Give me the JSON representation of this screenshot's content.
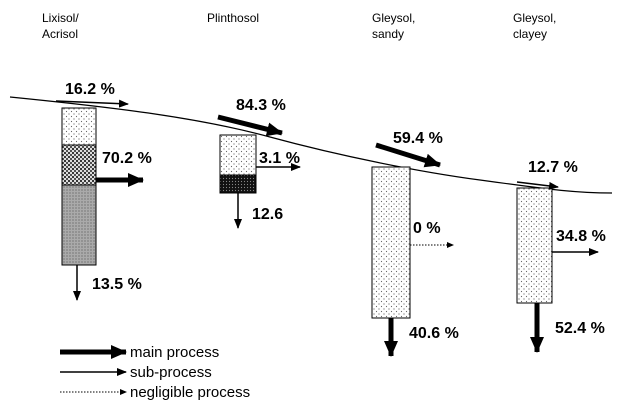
{
  "columns": [
    {
      "name": [
        "Lixisol/",
        "Acrisol"
      ],
      "inflow": "16.2 %",
      "lateral": "70.2 %",
      "drainage": "13.5 %"
    },
    {
      "name": [
        "Plinthosol"
      ],
      "inflow": "84.3 %",
      "lateral": "3.1 %",
      "drainage": "12.6"
    },
    {
      "name": [
        "Gleysol,",
        "sandy"
      ],
      "inflow": "59.4 %",
      "lateral": "0 %",
      "drainage": "40.6 %"
    },
    {
      "name": [
        "Gleysol,",
        "clayey"
      ],
      "inflow": "12.7 %",
      "lateral": "34.8 %",
      "drainage": "52.4 %"
    }
  ],
  "legend": [
    "main process",
    "sub-process",
    "negligible process"
  ]
}
